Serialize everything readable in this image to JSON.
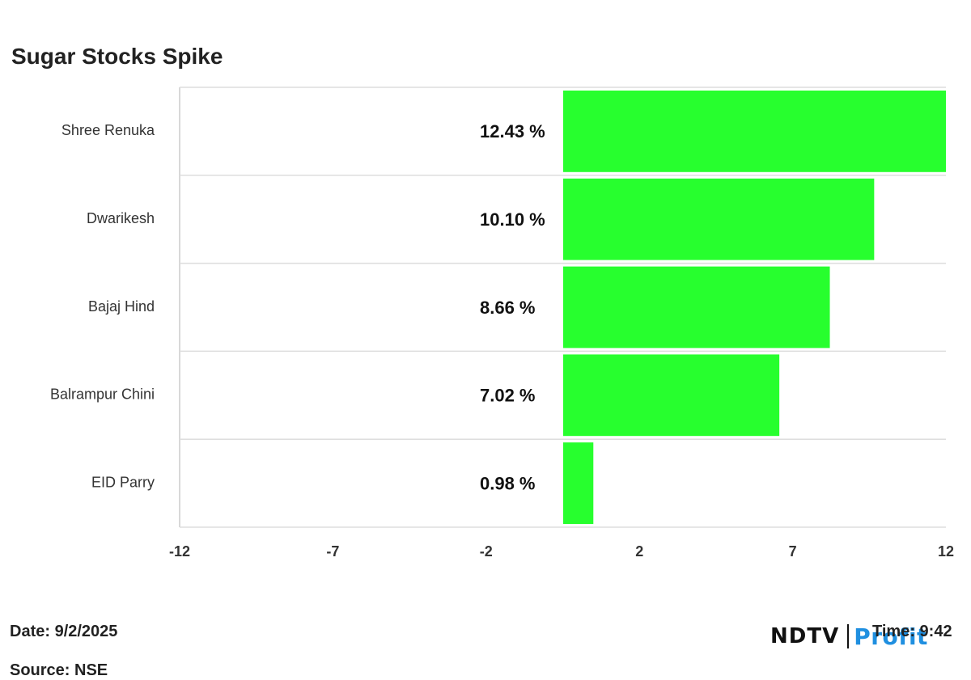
{
  "chart_data": {
    "type": "bar",
    "orientation": "horizontal",
    "title": "Sugar Stocks Spike",
    "categories": [
      "Shree Renuka",
      "Dwarikesh",
      "Bajaj Hind",
      "Balrampur Chini",
      "EID Parry"
    ],
    "values": [
      12.43,
      10.1,
      8.66,
      7.02,
      0.98
    ],
    "data_labels": [
      "12.43 %",
      "10.10 %",
      "8.66 %",
      "7.02 %",
      "0.98 %"
    ],
    "xticks": [
      -12,
      -7,
      -2,
      2,
      7,
      12
    ],
    "xlim": [
      -12,
      12
    ],
    "bar_color": "#27ff2e",
    "grid": true,
    "legend": "none"
  },
  "footer": {
    "date": "Date: 9/2/2025",
    "time": "Time: 9:42",
    "source": "Source: NSE"
  },
  "logo": {
    "ndtv": "NDTV",
    "profit": "Profit"
  }
}
